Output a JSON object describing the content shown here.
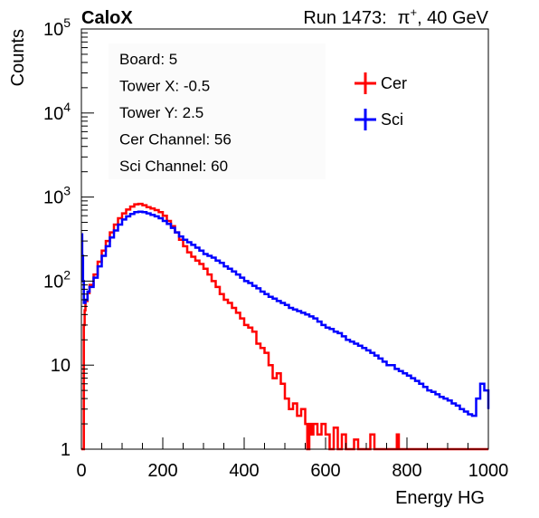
{
  "header": {
    "experiment": "CaloX",
    "run_label": "Run 1473:",
    "particle": "π",
    "particle_charge": "+",
    "energy_suffix": ", 40 GeV"
  },
  "info_box": {
    "lines": [
      "Board: 5",
      "Tower X: -0.5",
      "Tower Y: 2.5",
      "Cer Channel: 56",
      "Sci Channel: 60"
    ]
  },
  "chart_data": {
    "type": "line",
    "title": "",
    "xlabel": "Energy HG",
    "ylabel": "Counts",
    "xlim": [
      0,
      1000
    ],
    "ylim": [
      1,
      100000
    ],
    "y_scale": "log",
    "grid": false,
    "legend_position": "top-right",
    "x_ticks": [
      "0",
      "200",
      "400",
      "600",
      "800",
      "1000"
    ],
    "y_ticks": [
      {
        "value": 1,
        "base": "1",
        "exp": ""
      },
      {
        "value": 10,
        "base": "10",
        "exp": ""
      },
      {
        "value": 100,
        "base": "10",
        "exp": "2"
      },
      {
        "value": 1000,
        "base": "10",
        "exp": "3"
      },
      {
        "value": 10000,
        "base": "10",
        "exp": "4"
      },
      {
        "value": 100000,
        "base": "10",
        "exp": "5"
      }
    ],
    "series": [
      {
        "name": "Cer",
        "color": "#ff0000",
        "points": [
          [
            0,
            1
          ],
          [
            5,
            1
          ],
          [
            6,
            30
          ],
          [
            8,
            45
          ],
          [
            10,
            58
          ],
          [
            15,
            72
          ],
          [
            20,
            90
          ],
          [
            30,
            120
          ],
          [
            40,
            170
          ],
          [
            50,
            230
          ],
          [
            60,
            300
          ],
          [
            70,
            380
          ],
          [
            80,
            470
          ],
          [
            90,
            560
          ],
          [
            100,
            640
          ],
          [
            110,
            710
          ],
          [
            120,
            770
          ],
          [
            130,
            820
          ],
          [
            140,
            830
          ],
          [
            150,
            800
          ],
          [
            160,
            760
          ],
          [
            170,
            730
          ],
          [
            180,
            700
          ],
          [
            190,
            660
          ],
          [
            200,
            600
          ],
          [
            210,
            520
          ],
          [
            220,
            450
          ],
          [
            230,
            380
          ],
          [
            240,
            310
          ],
          [
            250,
            260
          ],
          [
            260,
            220
          ],
          [
            270,
            195
          ],
          [
            280,
            175
          ],
          [
            290,
            160
          ],
          [
            300,
            140
          ],
          [
            310,
            120
          ],
          [
            320,
            100
          ],
          [
            330,
            85
          ],
          [
            340,
            70
          ],
          [
            350,
            60
          ],
          [
            360,
            55
          ],
          [
            370,
            48
          ],
          [
            380,
            42
          ],
          [
            390,
            36
          ],
          [
            400,
            30
          ],
          [
            410,
            28
          ],
          [
            420,
            25
          ],
          [
            430,
            18
          ],
          [
            440,
            16
          ],
          [
            450,
            14
          ],
          [
            460,
            10
          ],
          [
            470,
            7
          ],
          [
            480,
            8
          ],
          [
            490,
            6
          ],
          [
            500,
            4
          ],
          [
            510,
            3
          ],
          [
            520,
            3.5
          ],
          [
            530,
            2.5
          ],
          [
            540,
            3
          ],
          [
            550,
            2
          ],
          [
            555,
            1
          ],
          [
            560,
            2
          ],
          [
            565,
            1.5
          ],
          [
            570,
            2
          ],
          [
            580,
            1.5
          ],
          [
            590,
            2
          ],
          [
            600,
            1.5
          ],
          [
            610,
            1
          ],
          [
            620,
            1.8
          ],
          [
            630,
            1
          ],
          [
            640,
            1.5
          ],
          [
            650,
            1
          ],
          [
            660,
            1
          ],
          [
            670,
            1.3
          ],
          [
            680,
            1
          ],
          [
            690,
            1
          ],
          [
            700,
            1
          ],
          [
            710,
            1.5
          ],
          [
            720,
            1
          ],
          [
            740,
            1
          ],
          [
            760,
            1
          ],
          [
            775,
            1.5
          ],
          [
            780,
            1
          ],
          [
            800,
            1
          ],
          [
            850,
            1
          ],
          [
            900,
            1
          ],
          [
            950,
            1
          ],
          [
            1000,
            1
          ]
        ]
      },
      {
        "name": "Sci",
        "color": "#0000ff",
        "points": [
          [
            0,
            360
          ],
          [
            2,
            200
          ],
          [
            4,
            100
          ],
          [
            6,
            55
          ],
          [
            10,
            60
          ],
          [
            15,
            75
          ],
          [
            20,
            85
          ],
          [
            30,
            110
          ],
          [
            40,
            150
          ],
          [
            50,
            200
          ],
          [
            60,
            260
          ],
          [
            70,
            330
          ],
          [
            80,
            400
          ],
          [
            90,
            470
          ],
          [
            100,
            540
          ],
          [
            110,
            590
          ],
          [
            120,
            630
          ],
          [
            130,
            660
          ],
          [
            140,
            670
          ],
          [
            150,
            660
          ],
          [
            160,
            640
          ],
          [
            170,
            615
          ],
          [
            180,
            590
          ],
          [
            190,
            560
          ],
          [
            200,
            520
          ],
          [
            210,
            480
          ],
          [
            220,
            430
          ],
          [
            230,
            380
          ],
          [
            240,
            340
          ],
          [
            250,
            310
          ],
          [
            260,
            290
          ],
          [
            270,
            270
          ],
          [
            280,
            250
          ],
          [
            290,
            230
          ],
          [
            300,
            210
          ],
          [
            310,
            200
          ],
          [
            320,
            190
          ],
          [
            330,
            175
          ],
          [
            340,
            165
          ],
          [
            350,
            150
          ],
          [
            360,
            140
          ],
          [
            370,
            130
          ],
          [
            380,
            120
          ],
          [
            390,
            110
          ],
          [
            400,
            100
          ],
          [
            410,
            95
          ],
          [
            420,
            88
          ],
          [
            430,
            82
          ],
          [
            440,
            75
          ],
          [
            450,
            70
          ],
          [
            460,
            65
          ],
          [
            470,
            62
          ],
          [
            480,
            58
          ],
          [
            490,
            55
          ],
          [
            500,
            52
          ],
          [
            510,
            48
          ],
          [
            520,
            46
          ],
          [
            530,
            44
          ],
          [
            540,
            42
          ],
          [
            550,
            40
          ],
          [
            560,
            38
          ],
          [
            570,
            36
          ],
          [
            580,
            33
          ],
          [
            590,
            30
          ],
          [
            600,
            28
          ],
          [
            610,
            27
          ],
          [
            620,
            25
          ],
          [
            630,
            24
          ],
          [
            640,
            22
          ],
          [
            650,
            20
          ],
          [
            660,
            19
          ],
          [
            670,
            18
          ],
          [
            680,
            17
          ],
          [
            690,
            16
          ],
          [
            700,
            15
          ],
          [
            710,
            14
          ],
          [
            720,
            13
          ],
          [
            730,
            12
          ],
          [
            740,
            11
          ],
          [
            750,
            10
          ],
          [
            760,
            10
          ],
          [
            770,
            9
          ],
          [
            780,
            8.5
          ],
          [
            790,
            8
          ],
          [
            800,
            7.5
          ],
          [
            810,
            7
          ],
          [
            820,
            6.5
          ],
          [
            830,
            6
          ],
          [
            840,
            5.5
          ],
          [
            850,
            5
          ],
          [
            860,
            4.8
          ],
          [
            870,
            4.5
          ],
          [
            880,
            4.2
          ],
          [
            890,
            4
          ],
          [
            900,
            3.8
          ],
          [
            910,
            3.5
          ],
          [
            920,
            3.3
          ],
          [
            930,
            3
          ],
          [
            940,
            2.8
          ],
          [
            950,
            2.6
          ],
          [
            960,
            2.5
          ],
          [
            970,
            4
          ],
          [
            980,
            6
          ],
          [
            990,
            5
          ],
          [
            1000,
            3
          ]
        ]
      }
    ]
  }
}
